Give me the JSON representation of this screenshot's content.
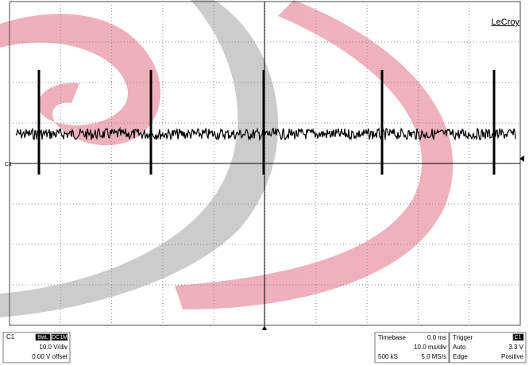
{
  "brand": "LeCroy",
  "trace_label": "C1",
  "channel": {
    "name": "C1",
    "bandwidth": "BwL",
    "coupling": "DC1M",
    "scale": "10.0 V/div",
    "offset": "0.00 V offset"
  },
  "timebase": {
    "title": "Timebase",
    "delay": "0.0 ms",
    "scale": "10.0 ms/div",
    "samples": "500 kS",
    "rate": "5.0 MS/s"
  },
  "trigger": {
    "title": "Trigger",
    "source": "C1",
    "mode": "Auto",
    "level": "3.3 V",
    "type": "Edge",
    "slope": "Positive"
  }
}
